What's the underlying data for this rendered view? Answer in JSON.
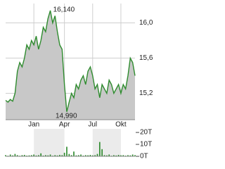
{
  "chart_data": {
    "type": "line",
    "categories": [
      null,
      null,
      null,
      null,
      null,
      null,
      null,
      null,
      null,
      null,
      null,
      null,
      "Jan",
      null,
      null,
      null,
      null,
      null,
      null,
      null,
      null,
      null,
      null,
      null,
      null,
      "Apr",
      null,
      null,
      null,
      null,
      null,
      null,
      null,
      null,
      null,
      null,
      null,
      "Jul",
      null,
      null,
      null,
      null,
      null,
      null,
      null,
      null,
      null,
      null,
      null,
      "Okt",
      null,
      null,
      null,
      null,
      null,
      null
    ],
    "series": [
      {
        "color": "#2e8b2e",
        "values": [
          15.12,
          15.1,
          15.13,
          15.11,
          15.2,
          15.45,
          15.55,
          15.5,
          15.6,
          15.75,
          15.7,
          15.8,
          15.75,
          15.85,
          15.7,
          15.8,
          15.95,
          15.9,
          16.05,
          16.14,
          16.0,
          16.08,
          15.9,
          15.75,
          15.7,
          15.3,
          14.99,
          15.1,
          15.2,
          15.15,
          15.3,
          15.25,
          15.35,
          15.4,
          15.3,
          15.45,
          15.5,
          15.4,
          15.25,
          15.3,
          15.15,
          15.3,
          15.25,
          15.2,
          15.35,
          15.3,
          15.2,
          15.25,
          15.3,
          15.2,
          15.3,
          15.25,
          15.4,
          15.6,
          15.55,
          15.4
        ]
      }
    ],
    "ylim": [
      14.9,
      16.22
    ],
    "yticks": [
      {
        "value": 15.2,
        "label": "15,2"
      },
      {
        "value": 15.6,
        "label": "15,6"
      },
      {
        "value": 16.0,
        "label": "16,0"
      }
    ],
    "grid": true,
    "area_color": "#c8c8c8",
    "max_label": "16,140",
    "min_label": "14,990",
    "volume": {
      "color": "#2e8b2e",
      "values": [
        1,
        0.5,
        1.5,
        0.8,
        2,
        1,
        0.5,
        1,
        1.2,
        0.6,
        0.8,
        1,
        1.5,
        0.7,
        1,
        2.5,
        0.6,
        1,
        0.8,
        1.5,
        0.5,
        1,
        0.7,
        1.2,
        1,
        3,
        8,
        2,
        1,
        4,
        0.8,
        1,
        1.5,
        0.6,
        1,
        0.9,
        1.2,
        0.8,
        1,
        2,
        12,
        6,
        1,
        0.8,
        1.5,
        0.5,
        1,
        0.7,
        1.2,
        0.9,
        1,
        0.6,
        1,
        0.8,
        1.5,
        1
      ],
      "ylim": [
        0,
        23
      ],
      "yticks": [
        {
          "value": 0,
          "label": "0T"
        },
        {
          "value": 10,
          "label": "10T"
        },
        {
          "value": 20,
          "label": "20T"
        }
      ]
    }
  }
}
